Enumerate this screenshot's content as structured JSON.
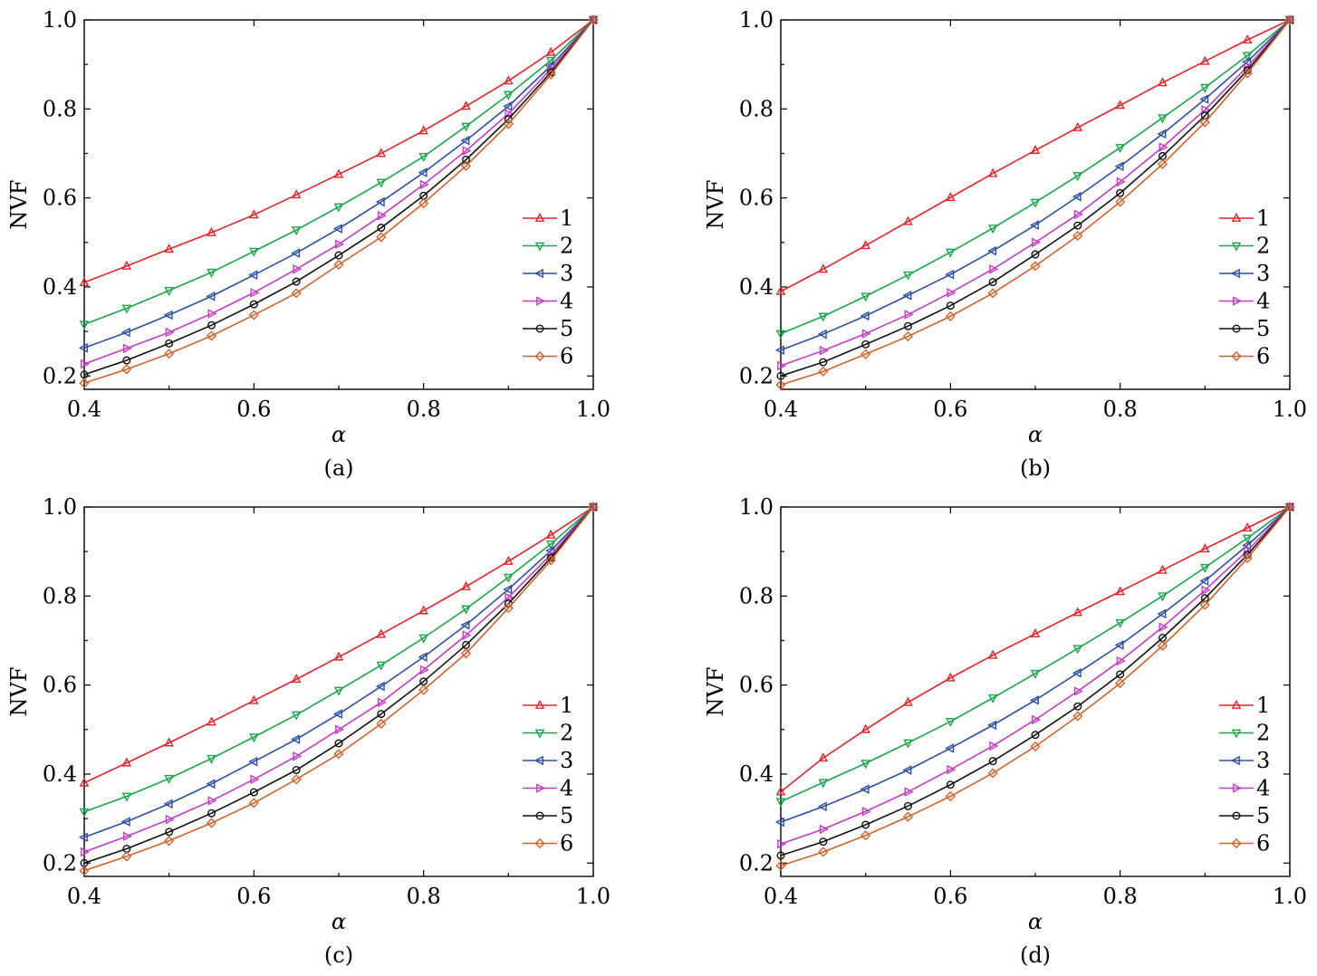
{
  "chart_data": [
    {
      "type": "line",
      "panel_label": "(a)",
      "xlabel": "α",
      "ylabel": "NVF",
      "xlim": [
        0.4,
        1.0
      ],
      "ylim": [
        0.17,
        1.0
      ],
      "xticks": [
        "0.4",
        "0.6",
        "0.8",
        "1.0"
      ],
      "yticks": [
        "0.2",
        "0.4",
        "0.6",
        "0.8",
        "1.0"
      ],
      "legend_position": "lower-right",
      "x": [
        0.4,
        0.45,
        0.5,
        0.55,
        0.6,
        0.65,
        0.7,
        0.75,
        0.8,
        0.85,
        0.9,
        0.95,
        1.0
      ],
      "series": [
        {
          "name": "1",
          "color": "#e2232a",
          "marker": "triangle-up",
          "values": [
            0.41,
            0.447,
            0.485,
            0.522,
            0.562,
            0.607,
            0.653,
            0.7,
            0.751,
            0.806,
            0.863,
            0.927,
            1.0
          ]
        },
        {
          "name": "2",
          "color": "#1aa64a",
          "marker": "triangle-down",
          "values": [
            0.316,
            0.352,
            0.392,
            0.433,
            0.48,
            0.528,
            0.58,
            0.635,
            0.693,
            0.761,
            0.832,
            0.909,
            1.0
          ]
        },
        {
          "name": "3",
          "color": "#2d4fa3",
          "marker": "triangle-left",
          "values": [
            0.263,
            0.298,
            0.337,
            0.379,
            0.427,
            0.476,
            0.531,
            0.591,
            0.657,
            0.729,
            0.806,
            0.897,
            1.0
          ]
        },
        {
          "name": "4",
          "color": "#c43bc4",
          "marker": "triangle-right",
          "values": [
            0.227,
            0.262,
            0.298,
            0.34,
            0.387,
            0.44,
            0.496,
            0.56,
            0.63,
            0.706,
            0.789,
            0.889,
            1.0
          ]
        },
        {
          "name": "5",
          "color": "#111111",
          "marker": "circle",
          "values": [
            0.203,
            0.235,
            0.273,
            0.314,
            0.361,
            0.412,
            0.471,
            0.533,
            0.605,
            0.686,
            0.777,
            0.882,
            1.0
          ]
        },
        {
          "name": "6",
          "color": "#d2622a",
          "marker": "diamond",
          "values": [
            0.184,
            0.215,
            0.25,
            0.29,
            0.337,
            0.386,
            0.45,
            0.512,
            0.588,
            0.672,
            0.766,
            0.877,
            1.0
          ]
        }
      ]
    },
    {
      "type": "line",
      "panel_label": "(b)",
      "xlabel": "α",
      "ylabel": "NVF",
      "xlim": [
        0.4,
        1.0
      ],
      "ylim": [
        0.17,
        1.0
      ],
      "xticks": [
        "0.4",
        "0.6",
        "0.8",
        "1.0"
      ],
      "yticks": [
        "0.2",
        "0.4",
        "0.6",
        "0.8",
        "1.0"
      ],
      "legend_position": "lower-right",
      "x": [
        0.4,
        0.45,
        0.5,
        0.55,
        0.6,
        0.65,
        0.7,
        0.75,
        0.8,
        0.85,
        0.9,
        0.95,
        1.0
      ],
      "series": [
        {
          "name": "1",
          "color": "#e2232a",
          "marker": "triangle-up",
          "values": [
            0.39,
            0.44,
            0.493,
            0.547,
            0.601,
            0.655,
            0.707,
            0.758,
            0.808,
            0.859,
            0.907,
            0.955,
            1.0
          ]
        },
        {
          "name": "2",
          "color": "#1aa64a",
          "marker": "triangle-down",
          "values": [
            0.295,
            0.334,
            0.379,
            0.427,
            0.478,
            0.532,
            0.59,
            0.65,
            0.713,
            0.78,
            0.848,
            0.92,
            1.0
          ]
        },
        {
          "name": "3",
          "color": "#2d4fa3",
          "marker": "triangle-left",
          "values": [
            0.258,
            0.294,
            0.335,
            0.381,
            0.428,
            0.481,
            0.539,
            0.603,
            0.671,
            0.744,
            0.822,
            0.906,
            1.0
          ]
        },
        {
          "name": "4",
          "color": "#c43bc4",
          "marker": "triangle-right",
          "values": [
            0.223,
            0.257,
            0.295,
            0.338,
            0.387,
            0.44,
            0.5,
            0.563,
            0.636,
            0.714,
            0.798,
            0.895,
            1.0
          ]
        },
        {
          "name": "5",
          "color": "#111111",
          "marker": "circle",
          "values": [
            0.2,
            0.231,
            0.271,
            0.312,
            0.358,
            0.411,
            0.473,
            0.538,
            0.611,
            0.694,
            0.785,
            0.887,
            1.0
          ]
        },
        {
          "name": "6",
          "color": "#d2622a",
          "marker": "diamond",
          "values": [
            0.18,
            0.21,
            0.249,
            0.289,
            0.334,
            0.386,
            0.447,
            0.515,
            0.591,
            0.676,
            0.77,
            0.88,
            1.0
          ]
        }
      ]
    },
    {
      "type": "line",
      "panel_label": "(c)",
      "xlabel": "α",
      "ylabel": "NVF",
      "xlim": [
        0.4,
        1.0
      ],
      "ylim": [
        0.17,
        1.0
      ],
      "xticks": [
        "0.4",
        "0.6",
        "0.8",
        "1.0"
      ],
      "yticks": [
        "0.2",
        "0.4",
        "0.6",
        "0.8",
        "1.0"
      ],
      "legend_position": "lower-right",
      "x": [
        0.4,
        0.45,
        0.5,
        0.55,
        0.6,
        0.65,
        0.7,
        0.75,
        0.8,
        0.85,
        0.9,
        0.95,
        1.0
      ],
      "series": [
        {
          "name": "1",
          "color": "#e2232a",
          "marker": "triangle-up",
          "values": [
            0.38,
            0.425,
            0.47,
            0.517,
            0.565,
            0.613,
            0.663,
            0.714,
            0.767,
            0.821,
            0.878,
            0.937,
            1.0
          ]
        },
        {
          "name": "2",
          "color": "#1aa64a",
          "marker": "triangle-down",
          "values": [
            0.315,
            0.35,
            0.39,
            0.435,
            0.483,
            0.533,
            0.588,
            0.645,
            0.706,
            0.771,
            0.842,
            0.917,
            1.0
          ]
        },
        {
          "name": "3",
          "color": "#2d4fa3",
          "marker": "triangle-left",
          "values": [
            0.258,
            0.293,
            0.333,
            0.378,
            0.428,
            0.478,
            0.535,
            0.597,
            0.663,
            0.735,
            0.815,
            0.902,
            1.0
          ]
        },
        {
          "name": "4",
          "color": "#c43bc4",
          "marker": "triangle-right",
          "values": [
            0.225,
            0.26,
            0.298,
            0.34,
            0.388,
            0.44,
            0.5,
            0.561,
            0.634,
            0.712,
            0.797,
            0.893,
            1.0
          ]
        },
        {
          "name": "5",
          "color": "#111111",
          "marker": "circle",
          "values": [
            0.2,
            0.232,
            0.27,
            0.312,
            0.359,
            0.409,
            0.469,
            0.535,
            0.608,
            0.69,
            0.783,
            0.886,
            1.0
          ]
        },
        {
          "name": "6",
          "color": "#d2622a",
          "marker": "diamond",
          "values": [
            0.183,
            0.215,
            0.25,
            0.29,
            0.335,
            0.388,
            0.445,
            0.513,
            0.589,
            0.671,
            0.773,
            0.88,
            1.0
          ]
        }
      ]
    },
    {
      "type": "line",
      "panel_label": "(d)",
      "xlabel": "α",
      "ylabel": "NVF",
      "xlim": [
        0.4,
        1.0
      ],
      "ylim": [
        0.17,
        1.0
      ],
      "xticks": [
        "0.4",
        "0.6",
        "0.8",
        "1.0"
      ],
      "yticks": [
        "0.2",
        "0.4",
        "0.6",
        "0.8",
        "1.0"
      ],
      "legend_position": "lower-right",
      "x": [
        0.4,
        0.45,
        0.5,
        0.55,
        0.6,
        0.65,
        0.7,
        0.75,
        0.8,
        0.85,
        0.9,
        0.95,
        1.0
      ],
      "series": [
        {
          "name": "1",
          "color": "#e2232a",
          "marker": "triangle-up",
          "values": [
            0.36,
            0.436,
            0.5,
            0.561,
            0.616,
            0.667,
            0.715,
            0.763,
            0.81,
            0.858,
            0.906,
            0.953,
            1.0
          ]
        },
        {
          "name": "2",
          "color": "#1aa64a",
          "marker": "triangle-down",
          "values": [
            0.338,
            0.381,
            0.424,
            0.47,
            0.518,
            0.571,
            0.626,
            0.682,
            0.74,
            0.8,
            0.864,
            0.93,
            1.0
          ]
        },
        {
          "name": "3",
          "color": "#2d4fa3",
          "marker": "triangle-left",
          "values": [
            0.292,
            0.327,
            0.366,
            0.409,
            0.458,
            0.51,
            0.566,
            0.627,
            0.69,
            0.76,
            0.834,
            0.914,
            1.0
          ]
        },
        {
          "name": "4",
          "color": "#c43bc4",
          "marker": "triangle-right",
          "values": [
            0.243,
            0.276,
            0.316,
            0.36,
            0.41,
            0.463,
            0.522,
            0.586,
            0.654,
            0.73,
            0.813,
            0.902,
            1.0
          ]
        },
        {
          "name": "5",
          "color": "#111111",
          "marker": "circle",
          "values": [
            0.217,
            0.248,
            0.286,
            0.328,
            0.376,
            0.429,
            0.488,
            0.552,
            0.624,
            0.706,
            0.795,
            0.893,
            1.0
          ]
        },
        {
          "name": "6",
          "color": "#d2622a",
          "marker": "diamond",
          "values": [
            0.194,
            0.225,
            0.262,
            0.304,
            0.35,
            0.402,
            0.462,
            0.53,
            0.604,
            0.688,
            0.78,
            0.885,
            1.0
          ]
        }
      ]
    }
  ]
}
